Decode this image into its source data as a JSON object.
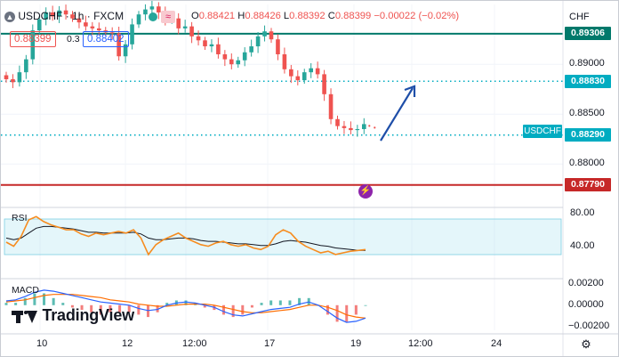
{
  "header": {
    "symbol": "USDCHF",
    "sep1": "·",
    "interval": "1h",
    "sep2": "·",
    "exchange": "FXCM",
    "o_label": "O",
    "o_value": "0.88421",
    "h_label": "H",
    "h_value": "0.88426",
    "l_label": "L",
    "l_value": "0.88392",
    "c_label": "C",
    "c_value": "0.88399",
    "change": "−0.00022 (−0.02%)"
  },
  "quote": {
    "sell": "0.88399",
    "spread": "0.3",
    "buy": "0.88402"
  },
  "currency": "CHF",
  "symbol_tag": "USDCHF",
  "watermark": "TradingView",
  "colors": {
    "up": "#26a69a",
    "down": "#ef5350",
    "accent": "#2962ff",
    "resistance": "#00796b",
    "support": "#c62828",
    "dotted": "#00acc1",
    "rsi": "#f68c1f",
    "rsi_ma": "#131722",
    "macd": "#2962ff",
    "signal": "#ff6d00"
  },
  "chart_data": [
    {
      "type": "candlestick",
      "symbol": "USDCHF",
      "timeframe": "1h",
      "ylim": [
        0.876,
        0.896
      ],
      "y_ticks": [
        "0.89000",
        "0.88500",
        "0.88000"
      ],
      "x_ticks": [
        "10",
        "12",
        "12:00",
        "17",
        "19",
        "12:00",
        "24"
      ],
      "levels": [
        {
          "value": 0.89306,
          "label": "0.89306",
          "style": "solid",
          "color": "#00796b"
        },
        {
          "value": 0.8883,
          "label": "0.88830",
          "style": "dotted",
          "color": "#00acc1"
        },
        {
          "value": 0.8829,
          "label": "0.88290",
          "style": "dotted",
          "color": "#00acc1"
        },
        {
          "value": 0.8779,
          "label": "0.87790",
          "style": "solid",
          "color": "#c62828"
        }
      ],
      "closes": [
        0.8885,
        0.8882,
        0.8892,
        0.8905,
        0.8934,
        0.8945,
        0.8952,
        0.8948,
        0.8954,
        0.895,
        0.8946,
        0.8942,
        0.8938,
        0.8936,
        0.8934,
        0.8932,
        0.8931,
        0.8908,
        0.892,
        0.894,
        0.895,
        0.8955,
        0.8958,
        0.8952,
        0.8944,
        0.8946,
        0.8936,
        0.8938,
        0.8928,
        0.8924,
        0.8918,
        0.892,
        0.891,
        0.8905,
        0.89,
        0.8904,
        0.8912,
        0.8918,
        0.8928,
        0.8933,
        0.8925,
        0.891,
        0.8895,
        0.8888,
        0.8884,
        0.8892,
        0.8896,
        0.889,
        0.887,
        0.8845,
        0.8838,
        0.8836,
        0.8834,
        0.8835,
        0.884
      ],
      "annotation": {
        "type": "arrow",
        "direction": "up"
      }
    },
    {
      "type": "line",
      "name": "RSI",
      "ylim": [
        5,
        85
      ],
      "y_ticks": [
        "80.00",
        "40.00"
      ],
      "band": [
        30,
        70
      ],
      "values": [
        45,
        40,
        52,
        72,
        76,
        70,
        66,
        63,
        60,
        60,
        55,
        52,
        56,
        54,
        56,
        58,
        56,
        60,
        50,
        30,
        42,
        48,
        52,
        56,
        50,
        46,
        42,
        40,
        44,
        46,
        42,
        40,
        42,
        38,
        36,
        40,
        54,
        60,
        56,
        46,
        40,
        36,
        32,
        34,
        30,
        32,
        34,
        35,
        36
      ],
      "signal": [
        50,
        48,
        50,
        56,
        62,
        64,
        64,
        63,
        62,
        61,
        59,
        57,
        57,
        56,
        56,
        56,
        56,
        57,
        55,
        50,
        48,
        48,
        49,
        50,
        50,
        49,
        47,
        46,
        46,
        45,
        44,
        43,
        43,
        42,
        41,
        41,
        43,
        46,
        47,
        46,
        45,
        43,
        41,
        40,
        38,
        37,
        36,
        35,
        35
      ]
    },
    {
      "type": "line",
      "name": "MACD",
      "ylim": [
        -0.0025,
        0.0023
      ],
      "y_ticks": [
        "0.00200",
        "0.00000",
        "−0.00200"
      ],
      "macd": [
        0.0004,
        0.0005,
        0.0008,
        0.0012,
        0.0014,
        0.0013,
        0.0011,
        0.0009,
        0.0007,
        0.0005,
        0.0003,
        0.0002,
        0.0001,
        0.0,
        -0.0003,
        -0.0005,
        -0.0004,
        0.0,
        0.0002,
        0.0003,
        0.0002,
        0.0,
        -0.0002,
        -0.0006,
        -0.0009,
        -0.001,
        -0.0008,
        -0.0006,
        -0.0004,
        -0.0003,
        -0.0002,
        0.0001,
        0.0003,
        0.0,
        -0.0006,
        -0.0012,
        -0.0016,
        -0.0015,
        -0.0012
      ],
      "signal": [
        0.0003,
        0.0004,
        0.0005,
        0.0007,
        0.0009,
        0.001,
        0.001,
        0.001,
        0.0009,
        0.0008,
        0.0007,
        0.0005,
        0.0004,
        0.0003,
        0.0001,
        0.0,
        -0.0001,
        -0.0001,
        0.0,
        0.0001,
        0.0001,
        0.0001,
        0.0,
        -0.0002,
        -0.0004,
        -0.0006,
        -0.0007,
        -0.0007,
        -0.0006,
        -0.0005,
        -0.0004,
        -0.0002,
        0.0,
        0.0,
        -0.0002,
        -0.0005,
        -0.0009,
        -0.0011,
        -0.0012
      ]
    }
  ]
}
